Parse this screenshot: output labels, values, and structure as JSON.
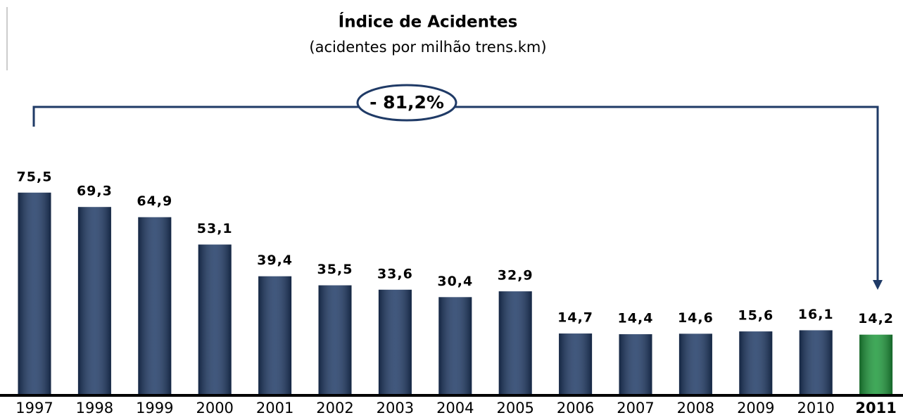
{
  "chart_data": {
    "type": "bar",
    "title": "Índice de Acidentes",
    "subtitle": "(acidentes por milhão trens.km)",
    "annotation": "- 81,2%",
    "categories": [
      "1997",
      "1998",
      "1999",
      "2000",
      "2001",
      "2002",
      "2003",
      "2004",
      "2005",
      "2006",
      "2007",
      "2008",
      "2009",
      "2010",
      "2011"
    ],
    "values": [
      75.5,
      69.3,
      64.9,
      53.1,
      39.4,
      35.5,
      33.6,
      30.4,
      32.9,
      14.7,
      14.4,
      14.6,
      15.6,
      16.1,
      14.2
    ],
    "value_labels": [
      "75,5",
      "69,3",
      "64,9",
      "53,1",
      "39,4",
      "35,5",
      "33,6",
      "30,4",
      "32,9",
      "14,7",
      "14,4",
      "14,6",
      "15,6",
      "16,1",
      "14,2"
    ],
    "colors": [
      "#1f3a66",
      "#1f3a66",
      "#1f3a66",
      "#1f3a66",
      "#1f3a66",
      "#1f3a66",
      "#1f3a66",
      "#1f3a66",
      "#1f3a66",
      "#1f3a66",
      "#1f3a66",
      "#1f3a66",
      "#1f3a66",
      "#1f3a66",
      "#1e9a3c"
    ],
    "ylim": [
      -12,
      80
    ]
  }
}
